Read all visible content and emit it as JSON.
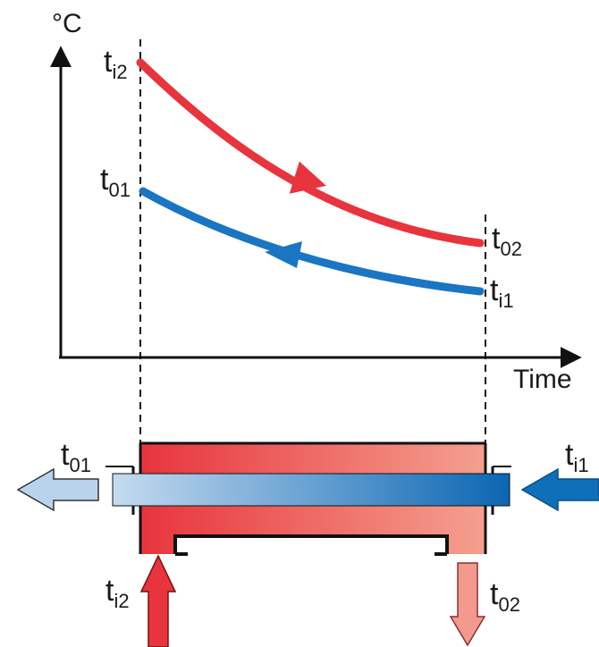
{
  "axis": {
    "y_unit": "°C",
    "x_label": "Time"
  },
  "curves": [
    {
      "name": "hot",
      "color": "#e8343d",
      "start_label": "t",
      "start_sub": "i2",
      "end_label": "t",
      "end_sub": "02",
      "direction": "forward"
    },
    {
      "name": "cold",
      "color": "#1a75c2",
      "start_label": "t",
      "start_sub": "01",
      "end_label": "t",
      "end_sub": "i1",
      "direction": "backward"
    }
  ],
  "exchanger": {
    "left_out": {
      "main": "t",
      "sub": "01"
    },
    "right_in": {
      "main": "t",
      "sub": "i1"
    },
    "bottom_in": {
      "main": "t",
      "sub": "i2"
    },
    "bottom_out": {
      "main": "t",
      "sub": "02"
    }
  },
  "colors": {
    "hot": "#e8343d",
    "hot_light": "#f4998d",
    "cold": "#0f6fb8",
    "cold_light": "#b9d3ec",
    "axis": "#111111"
  }
}
